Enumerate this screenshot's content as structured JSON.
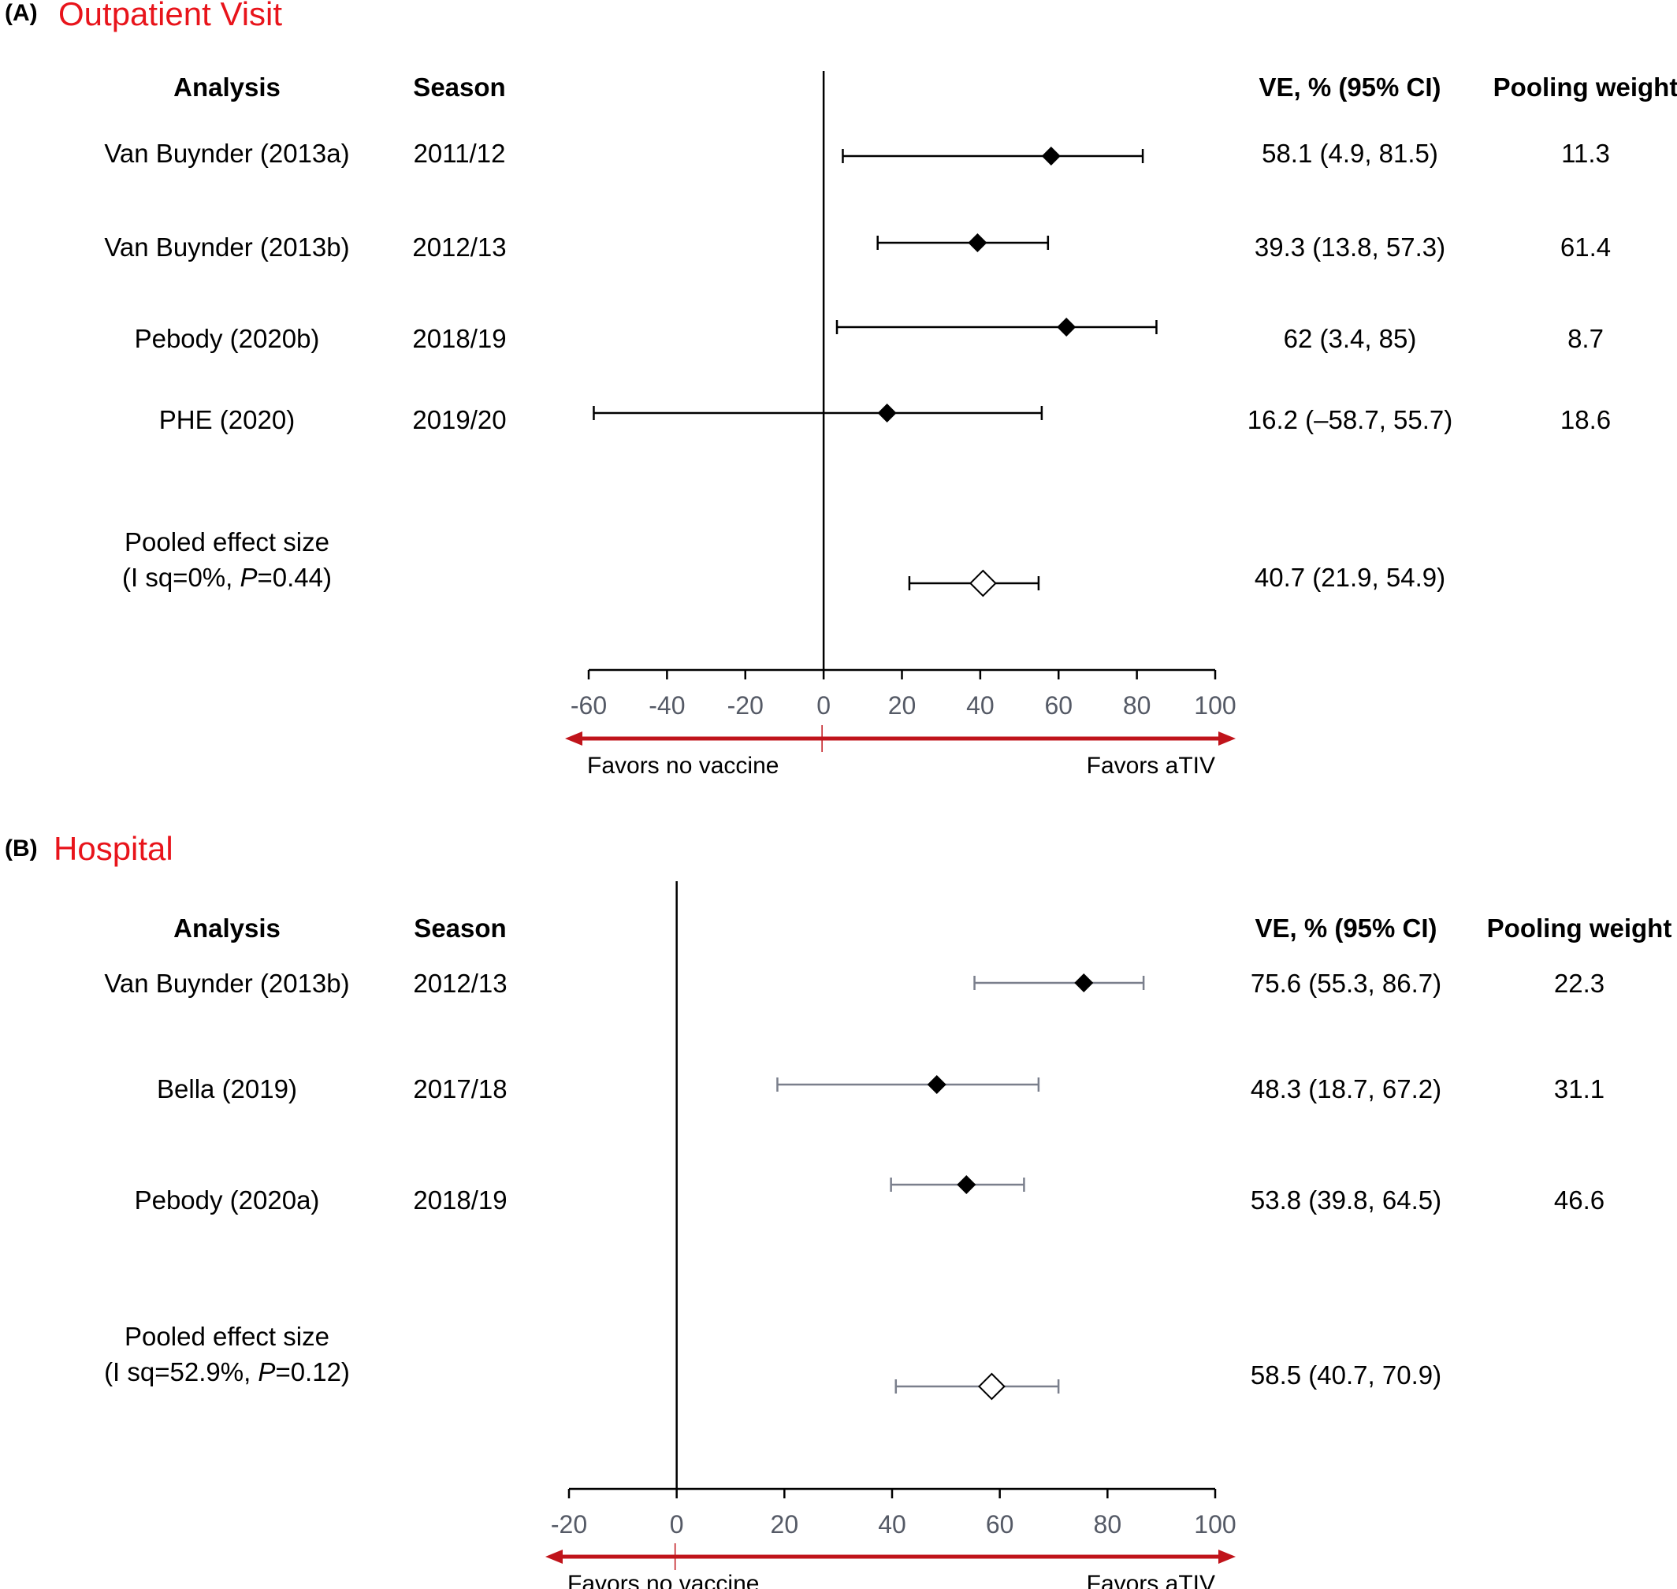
{
  "chart_data": [
    {
      "type": "forest",
      "panel_label": "(A)",
      "title": "Outpatient Visit",
      "headers": {
        "analysis": "Analysis",
        "season": "Season",
        "ve": "VE, % (95% CI)",
        "weight": "Pooling weight"
      },
      "xlim": [
        -60,
        100
      ],
      "ticks": [
        "-60",
        "-40",
        "-20",
        "0",
        "20",
        "40",
        "60",
        "80",
        "100"
      ],
      "tick_values": [
        -60,
        -40,
        -20,
        0,
        20,
        40,
        60,
        80,
        100
      ],
      "reference_line": 0,
      "favors_left": "Favors no vaccine",
      "favors_right": "Favors aTIV",
      "studies": [
        {
          "analysis": "Van Buynder (2013a)",
          "season": "2011/12",
          "ve": 58.1,
          "lower": 4.9,
          "upper": 81.5,
          "ve_label": "58.1 (4.9, 81.5)",
          "weight": "11.3"
        },
        {
          "analysis": "Van Buynder (2013b)",
          "season": "2012/13",
          "ve": 39.3,
          "lower": 13.8,
          "upper": 57.3,
          "ve_label": "39.3 (13.8, 57.3)",
          "weight": "61.4"
        },
        {
          "analysis": "Pebody (2020b)",
          "season": "2018/19",
          "ve": 62,
          "lower": 3.4,
          "upper": 85,
          "ve_label": "62 (3.4, 85)",
          "weight": "8.7"
        },
        {
          "analysis": "PHE (2020)",
          "season": "2019/20",
          "ve": 16.2,
          "lower": -58.7,
          "upper": 55.7,
          "ve_label": "16.2 (–58.7, 55.7)",
          "weight": "18.6"
        }
      ],
      "pooled": {
        "line1": "Pooled effect size",
        "line2_prefix": "(I sq=0%, ",
        "p_symbol": "P",
        "line2_suffix": "=0.44)",
        "ve": 40.7,
        "lower": 21.9,
        "upper": 54.9,
        "ve_label": "40.7 (21.9, 54.9)"
      }
    },
    {
      "type": "forest",
      "panel_label": "(B)",
      "title": "Hospital",
      "headers": {
        "analysis": "Analysis",
        "season": "Season",
        "ve": "VE, % (95% CI)",
        "weight": "Pooling weight"
      },
      "xlim": [
        -20,
        100
      ],
      "ticks": [
        "-20",
        "0",
        "20",
        "40",
        "60",
        "80",
        "100"
      ],
      "tick_values": [
        -20,
        0,
        20,
        40,
        60,
        80,
        100
      ],
      "reference_line": 0,
      "favors_left": "Favors no vaccine",
      "favors_right": "Favors aTIV",
      "studies": [
        {
          "analysis": "Van Buynder (2013b)",
          "season": "2012/13",
          "ve": 75.6,
          "lower": 55.3,
          "upper": 86.7,
          "ve_label": "75.6 (55.3, 86.7)",
          "weight": "22.3"
        },
        {
          "analysis": "Bella (2019)",
          "season": "2017/18",
          "ve": 48.3,
          "lower": 18.7,
          "upper": 67.2,
          "ve_label": "48.3 (18.7, 67.2)",
          "weight": "31.1"
        },
        {
          "analysis": "Pebody (2020a)",
          "season": "2018/19",
          "ve": 53.8,
          "lower": 39.8,
          "upper": 64.5,
          "ve_label": "53.8 (39.8, 64.5)",
          "weight": "46.6"
        }
      ],
      "pooled": {
        "line1": "Pooled effect size",
        "line2_prefix": "(I sq=52.9%, ",
        "p_symbol": "P",
        "line2_suffix": "=0.12)",
        "ve": 58.5,
        "lower": 40.7,
        "upper": 70.9,
        "ve_label": "58.5 (40.7, 70.9)"
      }
    }
  ],
  "colors": {
    "title": "#e8141b",
    "arrow": "#c0141b",
    "ci_a": "#000000",
    "ci_b": "#7a7f8c",
    "tick_label": "#555a66"
  }
}
